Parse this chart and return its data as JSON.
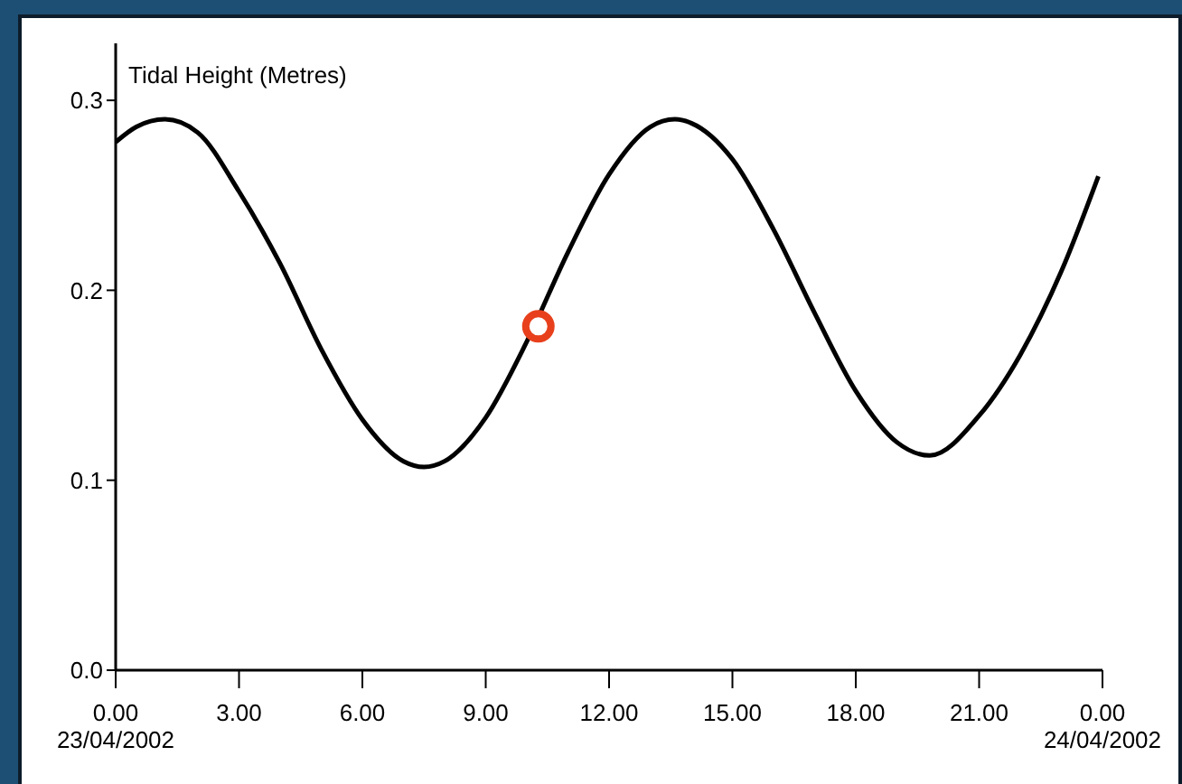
{
  "chart_data": {
    "type": "line",
    "ylabel": "Tidal Height (Metres)",
    "xlim": [
      0,
      24
    ],
    "xticks": [
      {
        "value": 0,
        "label": "0.00\n23/04/2002"
      },
      {
        "value": 3,
        "label": "3.00"
      },
      {
        "value": 6,
        "label": "6.00"
      },
      {
        "value": 9,
        "label": "9.00"
      },
      {
        "value": 12,
        "label": "12.00"
      },
      {
        "value": 15,
        "label": "15.00"
      },
      {
        "value": 18,
        "label": "18.00"
      },
      {
        "value": 21,
        "label": "21.00"
      },
      {
        "value": 24,
        "label": "0.00\n24/04/2002"
      }
    ],
    "ylim": [
      0,
      0.33
    ],
    "yticks": [
      {
        "value": 0,
        "label": "0.0"
      },
      0.1,
      0.2,
      0.3
    ],
    "series": [
      {
        "color": "#000000",
        "x": [
          0,
          0.5,
          1.2,
          2,
          3,
          4,
          5,
          6,
          7,
          7.5,
          8,
          9,
          10,
          11,
          12,
          13,
          13.6,
          14,
          15,
          16,
          17,
          18,
          19,
          19.8,
          21,
          22,
          23,
          23.9
        ],
        "values": [
          0.278,
          0.286,
          0.29,
          0.283,
          0.252,
          0.214,
          0.169,
          0.132,
          0.11,
          0.107,
          0.11,
          0.133,
          0.173,
          0.22,
          0.261,
          0.286,
          0.29,
          0.288,
          0.269,
          0.232,
          0.188,
          0.147,
          0.12,
          0.113,
          0.134,
          0.166,
          0.21,
          0.26
        ]
      },
      {
        "type": "scatter",
        "color": "#e8401c",
        "marker": "circle",
        "x": [
          10.28
        ],
        "values": [
          0.181
        ]
      }
    ]
  }
}
